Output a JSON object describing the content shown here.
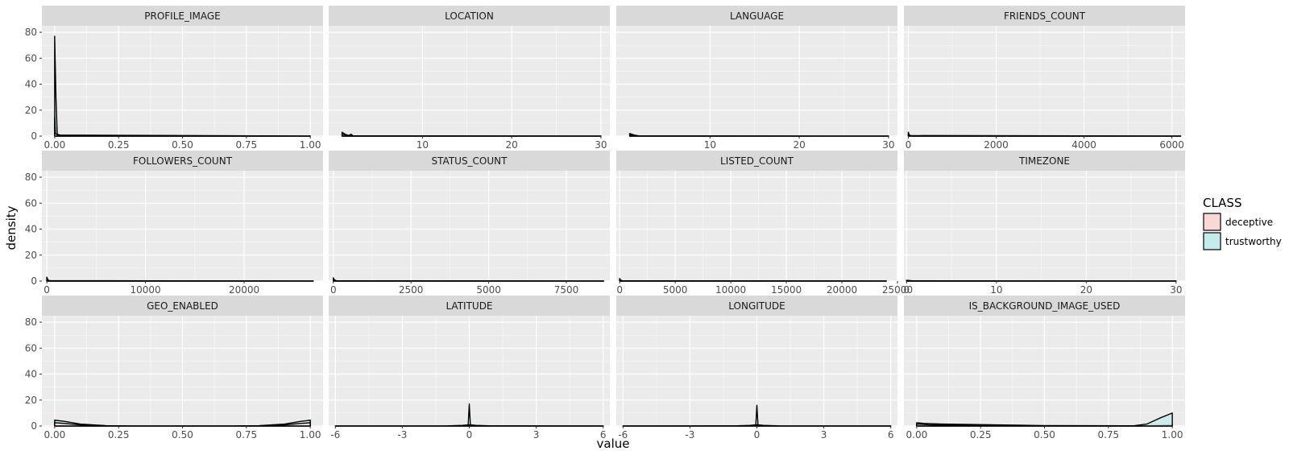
{
  "chart_data": {
    "type": "area",
    "subtype": "density-facets",
    "xlabel": "value",
    "ylabel": "density",
    "y_range": [
      0,
      85
    ],
    "y_ticks": [
      0,
      20,
      40,
      60,
      80
    ],
    "grid": true,
    "legend": {
      "title": "CLASS",
      "position": "right",
      "entries": [
        {
          "name": "deceptive",
          "color": "#f8d9d6"
        },
        {
          "name": "trustworthy",
          "color": "#c6ebec"
        }
      ]
    },
    "colors": {
      "panel_bg": "#ebebeb",
      "strip_bg": "#d9d9d9",
      "grid_major": "#ffffff",
      "line": "#000000",
      "deceptive": "#f8d9d6",
      "trustworthy": "#c6ebec"
    },
    "panels": [
      {
        "title": "PROFILE_IMAGE",
        "x_range": [
          -0.05,
          1.05
        ],
        "x_ticks": [
          0,
          0.25,
          0.5,
          0.75,
          1
        ],
        "x_tick_labels": [
          "0.00",
          "0.25",
          "0.50",
          "0.75",
          "1.00"
        ],
        "series": [
          {
            "name": "trustworthy",
            "x": [
              0,
              0.005,
              0.01,
              0.02,
              1
            ],
            "y": [
              77,
              30,
              1.5,
              0.8,
              0
            ]
          },
          {
            "name": "deceptive",
            "x": [
              0,
              0.003,
              0.01,
              0.03,
              1
            ],
            "y": [
              15,
              2,
              1,
              0.5,
              0
            ]
          }
        ]
      },
      {
        "title": "LOCATION",
        "x_range": [
          -0.5,
          31
        ],
        "x_ticks": [
          10,
          20,
          30
        ],
        "x_tick_labels": [
          "10",
          "20",
          "30"
        ],
        "series": [
          {
            "name": "trustworthy",
            "x": [
              1,
              1.2,
              1.5,
              1.8,
              2,
              2.2,
              2.6,
              30
            ],
            "y": [
              3,
              2,
              1,
              0.5,
              1.5,
              0.3,
              0.1,
              0
            ]
          },
          {
            "name": "deceptive",
            "x": [
              1,
              1.3,
              1.8,
              2.2,
              30
            ],
            "y": [
              1.5,
              1,
              0.4,
              0.2,
              0
            ]
          }
        ]
      },
      {
        "title": "LANGUAGE",
        "x_range": [
          -0.5,
          31
        ],
        "x_ticks": [
          10,
          20,
          30
        ],
        "x_tick_labels": [
          "10",
          "20",
          "30"
        ],
        "series": [
          {
            "name": "trustworthy",
            "x": [
              1,
              1.2,
              1.5,
              2,
              30
            ],
            "y": [
              2,
              1.5,
              0.8,
              0.2,
              0
            ]
          },
          {
            "name": "deceptive",
            "x": [
              1,
              1.3,
              2,
              30
            ],
            "y": [
              1,
              0.6,
              0.2,
              0
            ]
          }
        ]
      },
      {
        "title": "FRIENDS_COUNT",
        "x_range": [
          -100,
          6300
        ],
        "x_ticks": [
          0,
          2000,
          4000,
          6000
        ],
        "x_tick_labels": [
          "0",
          "2000",
          "4000",
          "6000"
        ],
        "series": [
          {
            "name": "trustworthy",
            "x": [
              0,
              20,
              60,
              6200
            ],
            "y": [
              3,
              1,
              0.2,
              0
            ]
          },
          {
            "name": "deceptive",
            "x": [
              0,
              30,
              6200
            ],
            "y": [
              1.5,
              0.4,
              0
            ]
          }
        ]
      },
      {
        "title": "FOLLOWERS_COUNT",
        "x_range": [
          -500,
          28000
        ],
        "x_ticks": [
          0,
          10000,
          20000
        ],
        "x_tick_labels": [
          "0",
          "10000",
          "20000"
        ],
        "series": [
          {
            "name": "trustworthy",
            "x": [
              0,
              100,
              300,
              27000
            ],
            "y": [
              3,
              1,
              0.2,
              0
            ]
          },
          {
            "name": "deceptive",
            "x": [
              0,
              150,
              27000
            ],
            "y": [
              1.5,
              0.3,
              0
            ]
          }
        ]
      },
      {
        "title": "STATUS_COUNT",
        "x_range": [
          -150,
          8900
        ],
        "x_ticks": [
          0,
          2500,
          5000,
          7500
        ],
        "x_tick_labels": [
          "0",
          "2500",
          "5000",
          "7500"
        ],
        "series": [
          {
            "name": "trustworthy",
            "x": [
              0,
              30,
              100,
              8700
            ],
            "y": [
              2.5,
              1,
              0.2,
              0
            ]
          },
          {
            "name": "deceptive",
            "x": [
              0,
              50,
              8700
            ],
            "y": [
              1.2,
              0.3,
              0
            ]
          }
        ]
      },
      {
        "title": "LISTED_COUNT",
        "x_range": [
          -300,
          25000
        ],
        "x_ticks": [
          0,
          5000,
          10000,
          15000,
          20000,
          25000
        ],
        "x_tick_labels": [
          "0",
          "5000",
          "10000",
          "15000",
          "20000",
          "25000"
        ],
        "series": [
          {
            "name": "trustworthy",
            "x": [
              0,
              80,
              250,
              24000
            ],
            "y": [
              2,
              0.8,
              0.2,
              0
            ]
          },
          {
            "name": "deceptive",
            "x": [
              0,
              120,
              24000
            ],
            "y": [
              1,
              0.3,
              0
            ]
          }
        ]
      },
      {
        "title": "TIMEZONE",
        "x_range": [
          -0.3,
          31
        ],
        "x_ticks": [
          0,
          10,
          20,
          30
        ],
        "x_tick_labels": [
          "0",
          "10",
          "20",
          "30"
        ],
        "series": [
          {
            "name": "trustworthy",
            "x": [
              0,
              0.5,
              30
            ],
            "y": [
              0.6,
              0.2,
              0
            ]
          },
          {
            "name": "deceptive",
            "x": [
              0,
              1,
              30
            ],
            "y": [
              0.4,
              0.1,
              0
            ]
          }
        ]
      },
      {
        "title": "GEO_ENABLED",
        "x_range": [
          -0.05,
          1.05
        ],
        "x_ticks": [
          0,
          0.25,
          0.5,
          0.75,
          1
        ],
        "x_tick_labels": [
          "0.00",
          "0.25",
          "0.50",
          "0.75",
          "1.00"
        ],
        "series": [
          {
            "name": "trustworthy",
            "x": [
              0,
              0.04,
              0.1,
              0.2,
              0.3,
              0.7,
              0.8,
              0.9,
              0.96,
              1
            ],
            "y": [
              4.5,
              3.5,
              1.5,
              0.3,
              0,
              0,
              0.3,
              1.5,
              3.5,
              4.5
            ]
          },
          {
            "name": "deceptive",
            "x": [
              0,
              0.04,
              0.1,
              0.2,
              0.3,
              0.7,
              0.8,
              0.9,
              0.96,
              1
            ],
            "y": [
              2.5,
              2,
              0.9,
              0.2,
              0,
              0,
              0.2,
              0.9,
              2,
              2.5
            ]
          }
        ]
      },
      {
        "title": "LATITUDE",
        "x_range": [
          -6.3,
          6.3
        ],
        "x_ticks": [
          -6,
          -3,
          0,
          3,
          6
        ],
        "x_tick_labels": [
          "-6",
          "-3",
          "0",
          "3",
          "6"
        ],
        "series": [
          {
            "name": "trustworthy",
            "x": [
              -6,
              -0.4,
              -0.05,
              0,
              0.05,
              0.4,
              6
            ],
            "y": [
              0,
              0,
              0.5,
              17,
              0.5,
              0,
              0
            ]
          },
          {
            "name": "deceptive",
            "x": [
              -6,
              -1,
              -0.3,
              0,
              0.3,
              1,
              6
            ],
            "y": [
              0,
              0.1,
              0.5,
              1,
              0.5,
              0.1,
              0
            ]
          }
        ]
      },
      {
        "title": "LONGITUDE",
        "x_range": [
          -6.3,
          6.3
        ],
        "x_ticks": [
          -6,
          -3,
          0,
          3,
          6
        ],
        "x_tick_labels": [
          "-6",
          "-3",
          "0",
          "3",
          "6"
        ],
        "series": [
          {
            "name": "trustworthy",
            "x": [
              -6,
              -0.4,
              -0.05,
              0,
              0.05,
              0.4,
              6
            ],
            "y": [
              0,
              0,
              0.5,
              16,
              0.5,
              0,
              0
            ]
          },
          {
            "name": "deceptive",
            "x": [
              -6,
              -1,
              -0.3,
              0,
              0.3,
              1,
              6
            ],
            "y": [
              0,
              0.1,
              0.5,
              1,
              0.5,
              0.1,
              0
            ]
          }
        ]
      },
      {
        "title": "IS_BACKGROUND_IMAGE_USED",
        "x_range": [
          -0.05,
          1.05
        ],
        "x_ticks": [
          0,
          0.25,
          0.5,
          0.75,
          1
        ],
        "x_tick_labels": [
          "0.00",
          "0.25",
          "0.50",
          "0.75",
          "1.00"
        ],
        "series": [
          {
            "name": "deceptive",
            "x": [
              0,
              0.03,
              0.1,
              0.5,
              0.9,
              0.95,
              1
            ],
            "y": [
              2.5,
              2,
              1.5,
              0.3,
              0.2,
              0.5,
              1
            ]
          },
          {
            "name": "trustworthy",
            "x": [
              0,
              0.05,
              0.3,
              0.85,
              0.9,
              0.95,
              1
            ],
            "y": [
              1.5,
              1,
              0.3,
              0.2,
              1.5,
              6,
              10
            ]
          }
        ]
      }
    ]
  }
}
